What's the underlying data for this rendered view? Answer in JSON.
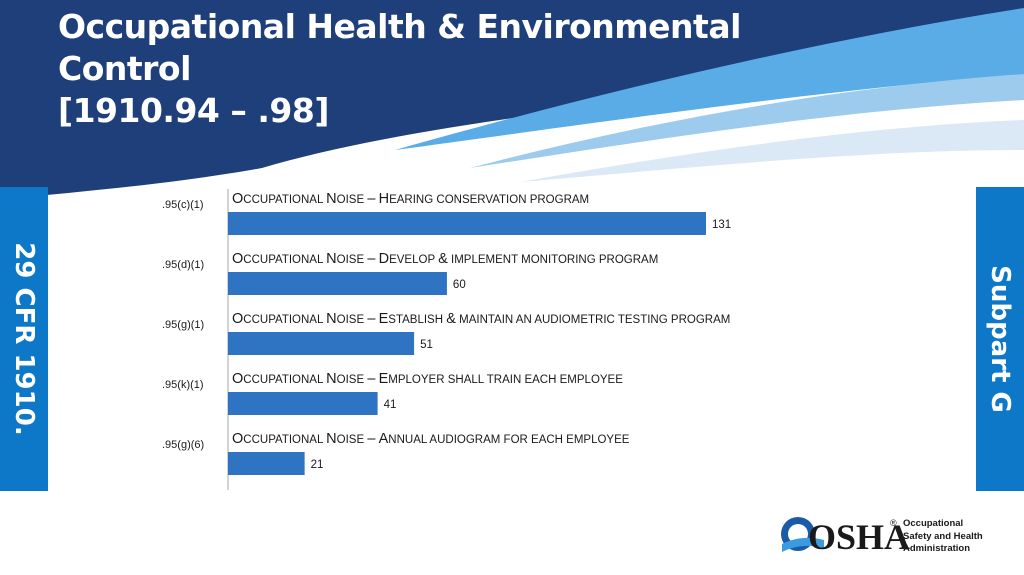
{
  "slide": {
    "title_lines": [
      "Occupational Health & Environmental",
      "Control",
      "[1910.94 – .98]"
    ],
    "left_tab": "29 CFR 1910.",
    "right_tab": "Subpart G",
    "colors": {
      "banner_dark": "#1f3f7a",
      "banner_light": "#5aace6",
      "tab_blue": "#0d78c7",
      "bar_blue": "#2f74c2"
    }
  },
  "logo": {
    "wordmark": "OSHA",
    "registered": "®",
    "agency_lines": [
      "Occupational",
      "Safety and Health",
      "Administration"
    ]
  },
  "chart_data": {
    "type": "bar",
    "orientation": "horizontal",
    "categories": [
      ".95(c)(1)",
      ".95(d)(1)",
      ".95(g)(1)",
      ".95(k)(1)",
      ".95(g)(6)"
    ],
    "descriptions": [
      "Occupational Noise – Hearing conservation program",
      "Occupational Noise – Develop & implement monitoring program",
      "Occupational Noise – Establish & maintain an audiometric testing program",
      "Occupational Noise – Employer shall train each employee",
      "Occupational Noise – Annual audiogram for each employee"
    ],
    "values": [
      131,
      60,
      51,
      41,
      21
    ],
    "value_labels": [
      "131",
      "60",
      "51",
      "41",
      "21"
    ],
    "xlim": [
      0,
      131
    ],
    "grid": false,
    "legend": "none"
  }
}
